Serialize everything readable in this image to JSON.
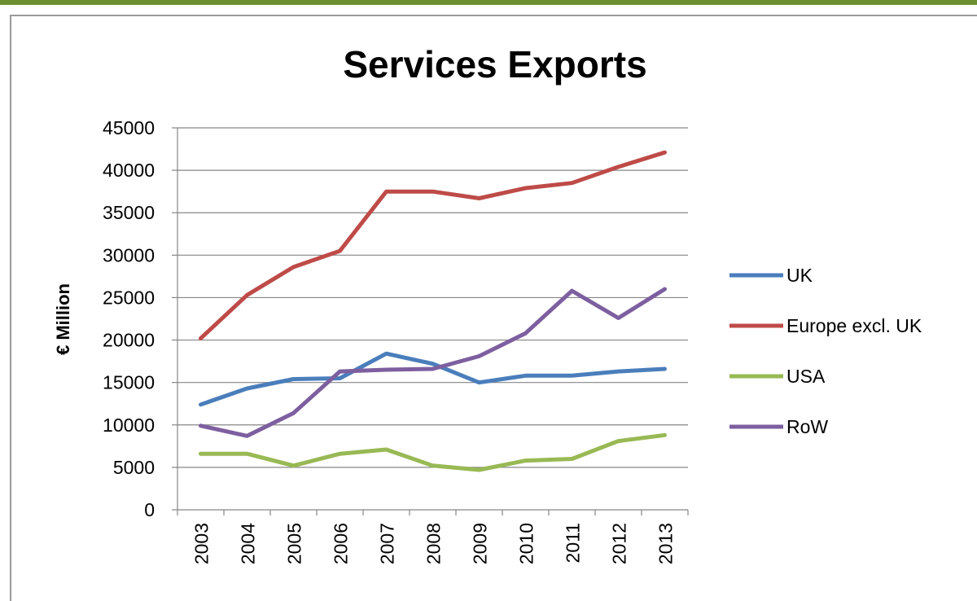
{
  "chart_data": {
    "type": "line",
    "title": "Services Exports",
    "xlabel": "",
    "ylabel": "€ Million",
    "ylim": [
      0,
      45000
    ],
    "yticks": [
      0,
      5000,
      10000,
      15000,
      20000,
      25000,
      30000,
      35000,
      40000,
      45000
    ],
    "categories": [
      "2003",
      "2004",
      "2005",
      "2006",
      "2007",
      "2008",
      "2009",
      "2010",
      "2011",
      "2012",
      "2013"
    ],
    "grid": true,
    "legend_position": "right",
    "series": [
      {
        "name": "UK",
        "color": "#4a7ebb",
        "values": [
          12400,
          14300,
          15400,
          15500,
          18400,
          17200,
          15000,
          15800,
          15800,
          16300,
          16600
        ]
      },
      {
        "name": "Europe excl. UK",
        "color": "#be4b48",
        "values": [
          20200,
          25300,
          28600,
          30500,
          37500,
          37500,
          36700,
          37900,
          38500,
          40400,
          42100
        ]
      },
      {
        "name": "USA",
        "color": "#98b954",
        "values": [
          6600,
          6600,
          5200,
          6600,
          7100,
          5200,
          4700,
          5800,
          6000,
          8100,
          8800
        ]
      },
      {
        "name": "RoW",
        "color": "#7d5fa0",
        "values": [
          9900,
          8700,
          11400,
          16300,
          16500,
          16600,
          18100,
          20800,
          25800,
          22600,
          26000
        ]
      }
    ]
  }
}
